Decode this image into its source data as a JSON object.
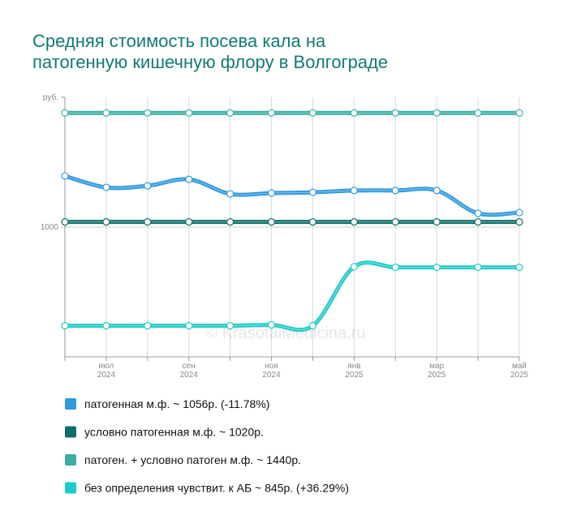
{
  "chart_data": {
    "type": "line",
    "title": [
      "Средняя стоимость посева кала на",
      "патогенную кишечную флору в Волгограде"
    ],
    "categories": [
      null,
      [
        "июл",
        "2024"
      ],
      null,
      [
        "сен",
        "2024"
      ],
      null,
      [
        "ноя",
        "2024"
      ],
      null,
      [
        "янв",
        "2025"
      ],
      null,
      [
        "мар",
        "2025"
      ],
      null,
      [
        "май",
        "2025"
      ]
    ],
    "ylim": [
      500,
      1500
    ],
    "yticks": [
      1000,
      {
        "value": 1500,
        "label": "руб."
      }
    ],
    "grid": true,
    "watermark": "© KrasotaiMedicina.ru",
    "series": [
      {
        "name": "патогенная м.ф. ~ 1056р. (-11.78%)",
        "color": "#2e9ae0",
        "values": [
          1197,
          1153,
          1159,
          1184,
          1128,
          1131,
          1134,
          1141,
          1141,
          1141,
          1053,
          1056
        ]
      },
      {
        "name": "условно патогенная м.ф. ~ 1020р.",
        "color": "#0e6e68",
        "values": [
          1020,
          1020,
          1020,
          1020,
          1020,
          1020,
          1020,
          1020,
          1020,
          1020,
          1020,
          1020
        ]
      },
      {
        "name": "патоген. + условно патоген м.ф. ~ 1440р.",
        "color": "#3aaea2",
        "values": [
          1440,
          1440,
          1440,
          1440,
          1440,
          1440,
          1440,
          1440,
          1440,
          1440,
          1440,
          1440
        ]
      },
      {
        "name": "без определения чувствит. к АБ ~ 845р. (+36.29%)",
        "color": "#1ecbc8",
        "values": [
          620,
          620,
          620,
          620,
          620,
          623,
          620,
          847,
          845,
          845,
          845,
          845
        ]
      }
    ]
  }
}
